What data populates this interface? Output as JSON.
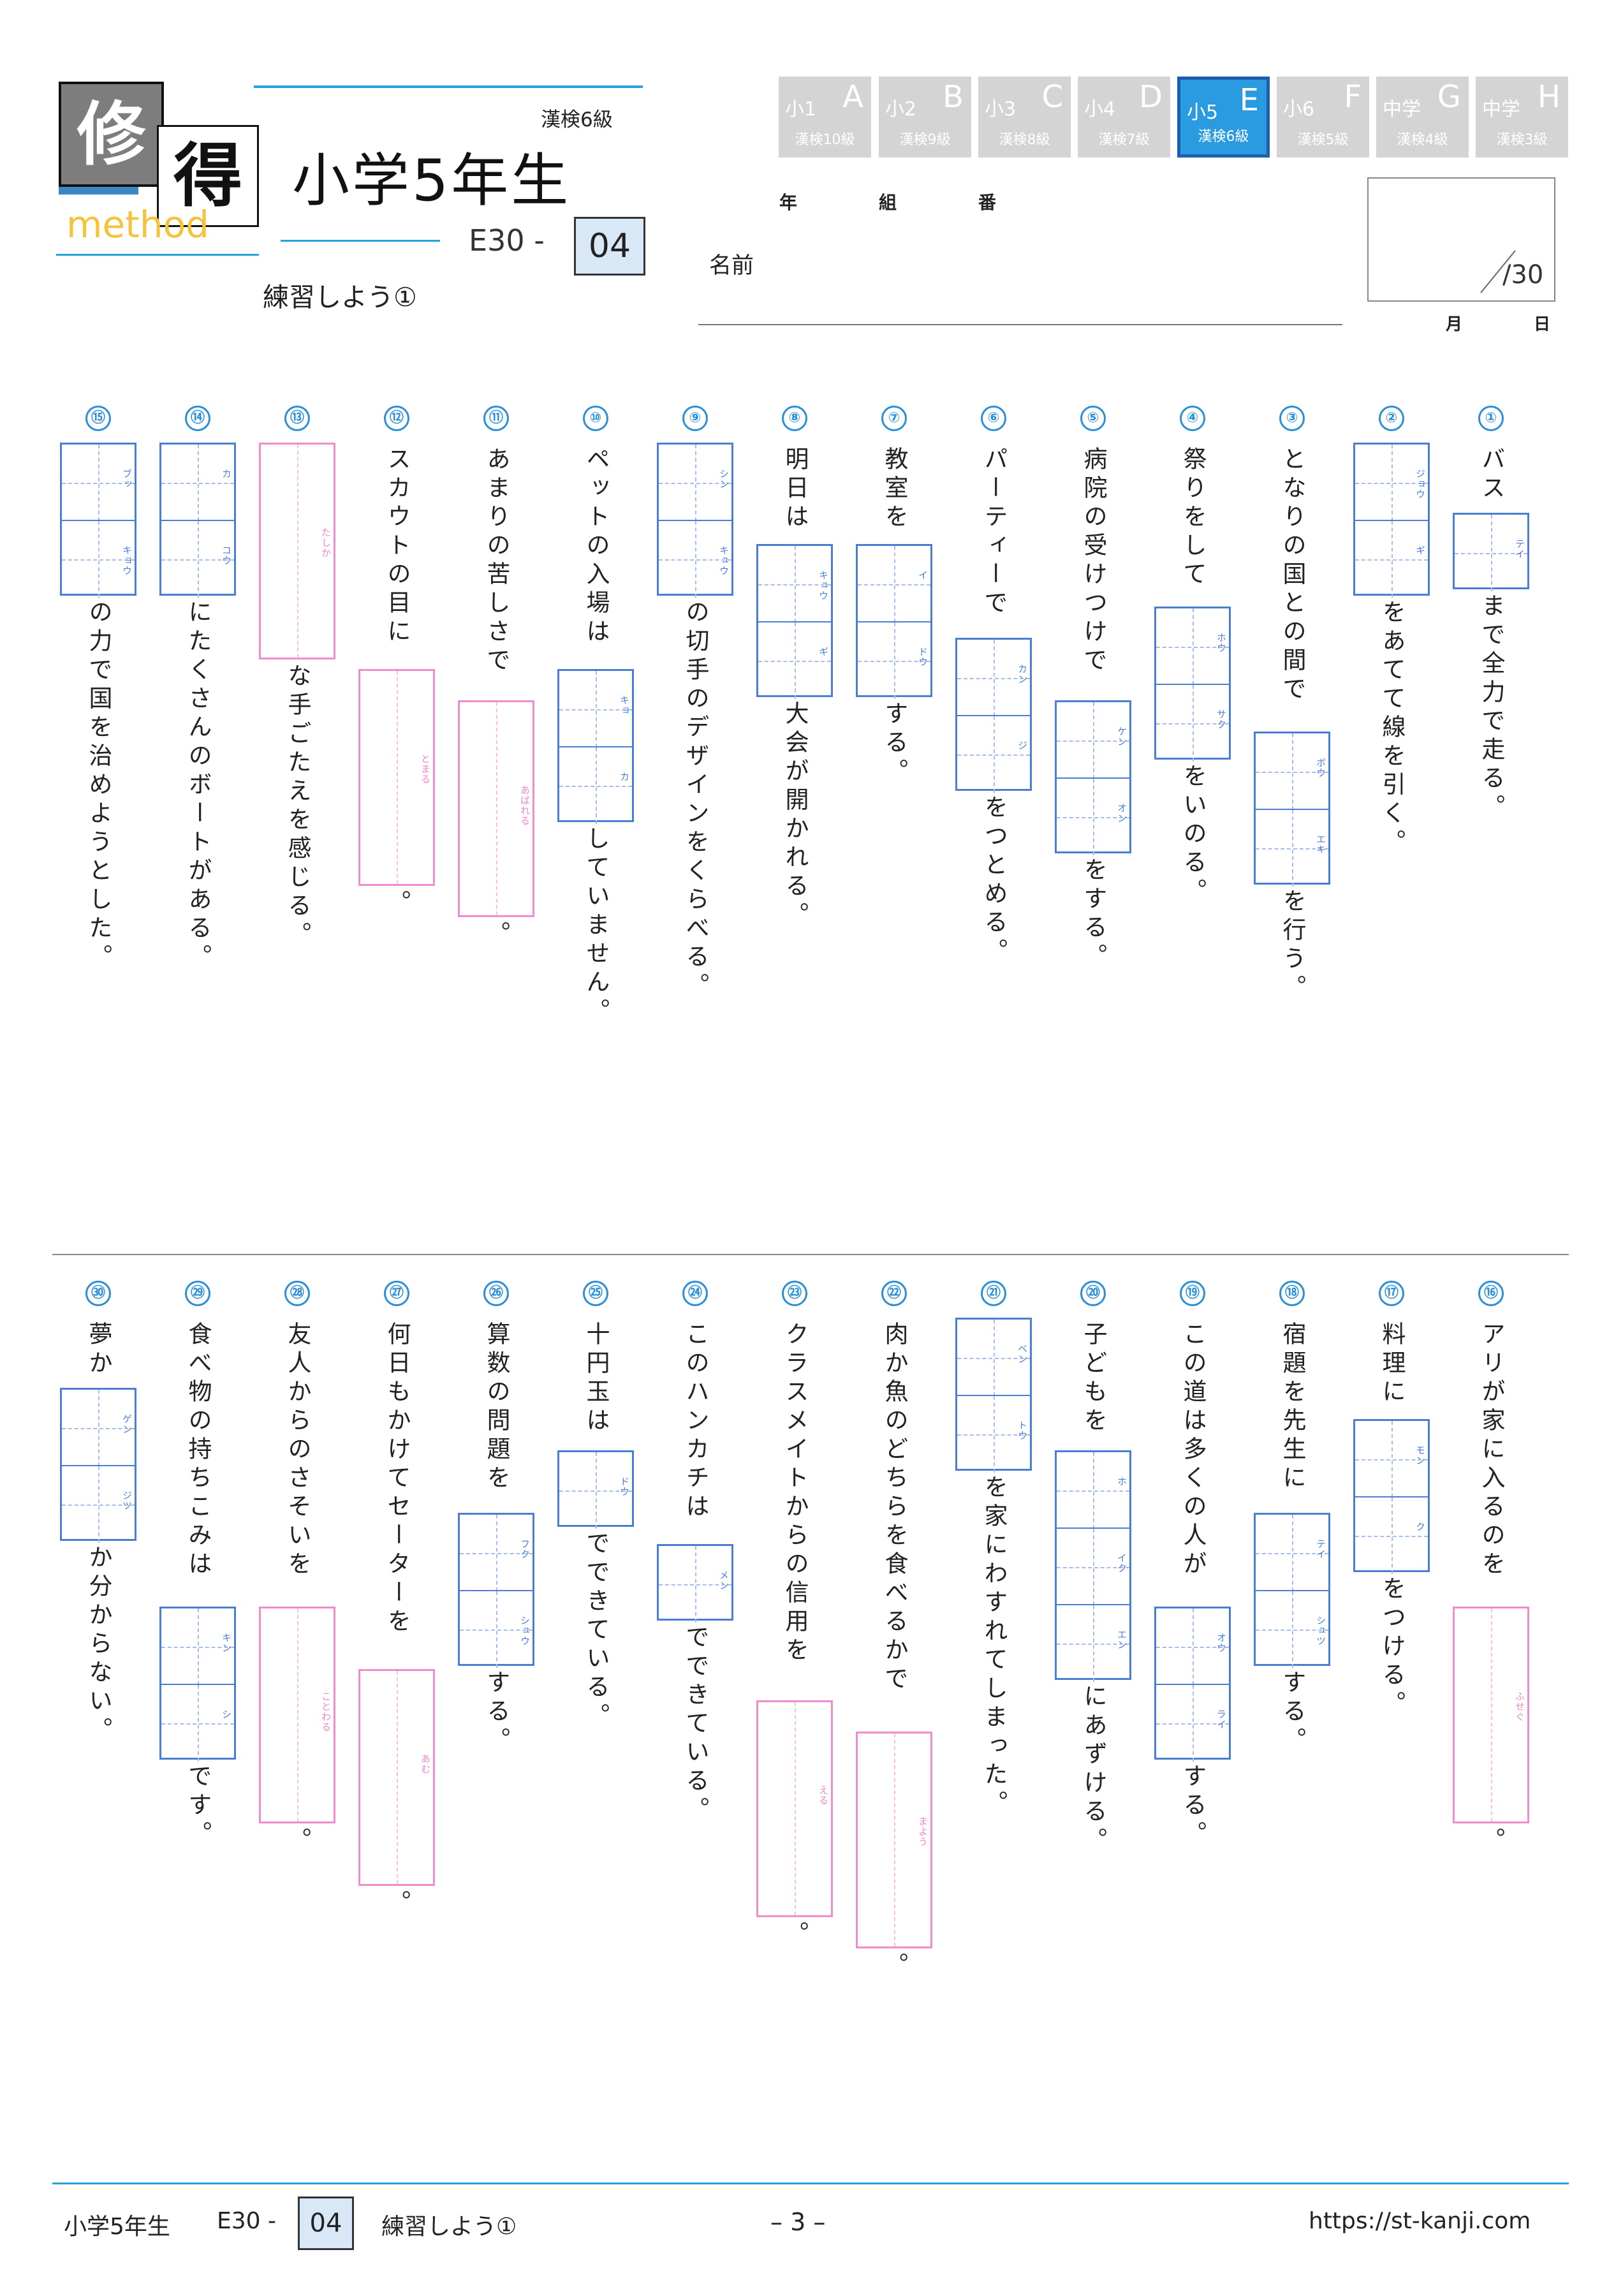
{
  "header": {
    "logo_top": "修",
    "logo_mid": "得",
    "logo_word": "method",
    "title": "小学5年生",
    "kanken": "漢検6級",
    "code_prefix": "E30 -",
    "code_num": "04",
    "subtitle": "練習しよう①"
  },
  "levels": [
    {
      "g": "小1",
      "l": "A",
      "k": "漢検10級"
    },
    {
      "g": "小2",
      "l": "B",
      "k": "漢検9級"
    },
    {
      "g": "小3",
      "l": "C",
      "k": "漢検8級"
    },
    {
      "g": "小4",
      "l": "D",
      "k": "漢検7級"
    },
    {
      "g": "小5",
      "l": "E",
      "k": "漢検6級",
      "active": true
    },
    {
      "g": "小6",
      "l": "F",
      "k": "漢検5級"
    },
    {
      "g": "中学",
      "l": "G",
      "k": "漢検4級"
    },
    {
      "g": "中学",
      "l": "H",
      "k": "漢検3級"
    }
  ],
  "form": {
    "year": "年",
    "class": "組",
    "number": "番",
    "name": "名前",
    "score": "/30",
    "month": "月",
    "day": "日"
  },
  "questions_top": [
    {
      "n": "①",
      "a": "バス",
      "box": {
        "t": "k",
        "r": [
          "テイ"
        ]
      },
      "b": "まで全力で走る。"
    },
    {
      "n": "②",
      "a": "",
      "box": {
        "t": "k",
        "r": [
          "ジョウ",
          "ギ"
        ]
      },
      "b": "をあてて線を引く。"
    },
    {
      "n": "③",
      "a": "となりの国との間で",
      "box": {
        "t": "k",
        "r": [
          "ボウ",
          "エキ"
        ]
      },
      "b": "を行う。"
    },
    {
      "n": "④",
      "a": "祭りをして",
      "box": {
        "t": "k",
        "r": [
          "ホウ",
          "サク"
        ]
      },
      "b": "をいのる。"
    },
    {
      "n": "⑤",
      "a": "病院の受けつけで",
      "box": {
        "t": "k",
        "r": [
          "ケン",
          "オン"
        ]
      },
      "b": "をする。"
    },
    {
      "n": "⑥",
      "a": "パーティーで",
      "box": {
        "t": "k",
        "r": [
          "カン",
          "ジ"
        ]
      },
      "b": "をつとめる。"
    },
    {
      "n": "⑦",
      "a": "教室を",
      "box": {
        "t": "k",
        "r": [
          "イ",
          "ドウ"
        ]
      },
      "b": "する。"
    },
    {
      "n": "⑧",
      "a": "明日は",
      "box": {
        "t": "k",
        "r": [
          "キュウ",
          "ギ"
        ]
      },
      "b": "大会が開かれる。"
    },
    {
      "n": "⑨",
      "a": "",
      "box": {
        "t": "k",
        "r": [
          "シン",
          "キュウ"
        ]
      },
      "b": "の切手のデザインをくらべる。"
    },
    {
      "n": "⑩",
      "a": "ペットの入場は",
      "box": {
        "t": "k",
        "r": [
          "キョ",
          "カ"
        ]
      },
      "b": "していません。"
    },
    {
      "n": "⑪",
      "a": "あまりの苦しさで",
      "box": {
        "t": "h",
        "r": [
          "あばれる"
        ]
      },
      "b": "。"
    },
    {
      "n": "⑫",
      "a": "スカウトの目に",
      "box": {
        "t": "h",
        "r": [
          "とまる"
        ]
      },
      "b": "。"
    },
    {
      "n": "⑬",
      "a": "",
      "box": {
        "t": "h",
        "r": [
          "たしか"
        ]
      },
      "b": "な手ごたえを感じる。"
    },
    {
      "n": "⑭",
      "a": "",
      "box": {
        "t": "k",
        "r": [
          "カ",
          "コウ"
        ]
      },
      "b": "にたくさんのボートがある。"
    },
    {
      "n": "⑮",
      "a": "",
      "box": {
        "t": "k",
        "r": [
          "ブッ",
          "キョウ"
        ]
      },
      "b": "の力で国を治めようとした。"
    }
  ],
  "questions_bottom": [
    {
      "n": "⑯",
      "a": "アリが家に入るのを",
      "box": {
        "t": "h",
        "r": [
          "ふせぐ"
        ]
      },
      "b": "。"
    },
    {
      "n": "⑰",
      "a": "料理に",
      "box": {
        "t": "k",
        "r": [
          "モン",
          "ク"
        ]
      },
      "b": "をつける。"
    },
    {
      "n": "⑱",
      "a": "宿題を先生に",
      "box": {
        "t": "k",
        "r": [
          "テイ",
          "シュツ"
        ]
      },
      "b": "する。"
    },
    {
      "n": "⑲",
      "a": "この道は多くの人が",
      "box": {
        "t": "k",
        "r": [
          "オウ",
          "ライ"
        ]
      },
      "b": "する。"
    },
    {
      "n": "⑳",
      "a": "子どもを",
      "box": {
        "t": "k",
        "r": [
          "ホ",
          "イク",
          "エン"
        ]
      },
      "b": "にあずける。"
    },
    {
      "n": "㉑",
      "a": "",
      "box": {
        "t": "k",
        "r": [
          "ベン",
          "トウ"
        ]
      },
      "b": "を家にわすれてしまった。"
    },
    {
      "n": "㉒",
      "a": "肉か魚のどちらを食べるかで",
      "box": {
        "t": "h",
        "r": [
          "まよう"
        ]
      },
      "b": "。"
    },
    {
      "n": "㉓",
      "a": "クラスメイトからの信用を",
      "box": {
        "t": "h",
        "r": [
          "える"
        ]
      },
      "b": "。"
    },
    {
      "n": "㉔",
      "a": "このハンカチは",
      "box": {
        "t": "k",
        "r": [
          "メン"
        ]
      },
      "b": "でできている。"
    },
    {
      "n": "㉕",
      "a": "十円玉は",
      "box": {
        "t": "k",
        "r": [
          "ドウ"
        ]
      },
      "b": "でできている。"
    },
    {
      "n": "㉖",
      "a": "算数の問題を",
      "box": {
        "t": "k",
        "r": [
          "フク",
          "シュウ"
        ]
      },
      "b": "する。"
    },
    {
      "n": "㉗",
      "a": "何日もかけてセーターを",
      "box": {
        "t": "h",
        "r": [
          "あむ"
        ]
      },
      "b": "。"
    },
    {
      "n": "㉘",
      "a": "友人からのさそいを",
      "box": {
        "t": "h",
        "r": [
          "ことわる"
        ]
      },
      "b": "。"
    },
    {
      "n": "㉙",
      "a": "食べ物の持ちこみは",
      "box": {
        "t": "k",
        "r": [
          "キン",
          "シ"
        ]
      },
      "b": "です。"
    },
    {
      "n": "㉚",
      "a": "夢か",
      "box": {
        "t": "k",
        "r": [
          "ゲン",
          "ジツ"
        ]
      },
      "b": "か分からない。"
    }
  ],
  "footer": {
    "grade": "小学5年生",
    "code_prefix": "E30 -",
    "code_num": "04",
    "title": "練習しよう①",
    "page": "– 3 –",
    "url": "https://st-kanji.com"
  },
  "colors": {
    "accent": "#2a9be0",
    "kanji_box": "#4a7ed4",
    "hira_box": "#f08ccd",
    "active_level": "#2a9be0",
    "inactive_level": "#d4d4d4"
  }
}
